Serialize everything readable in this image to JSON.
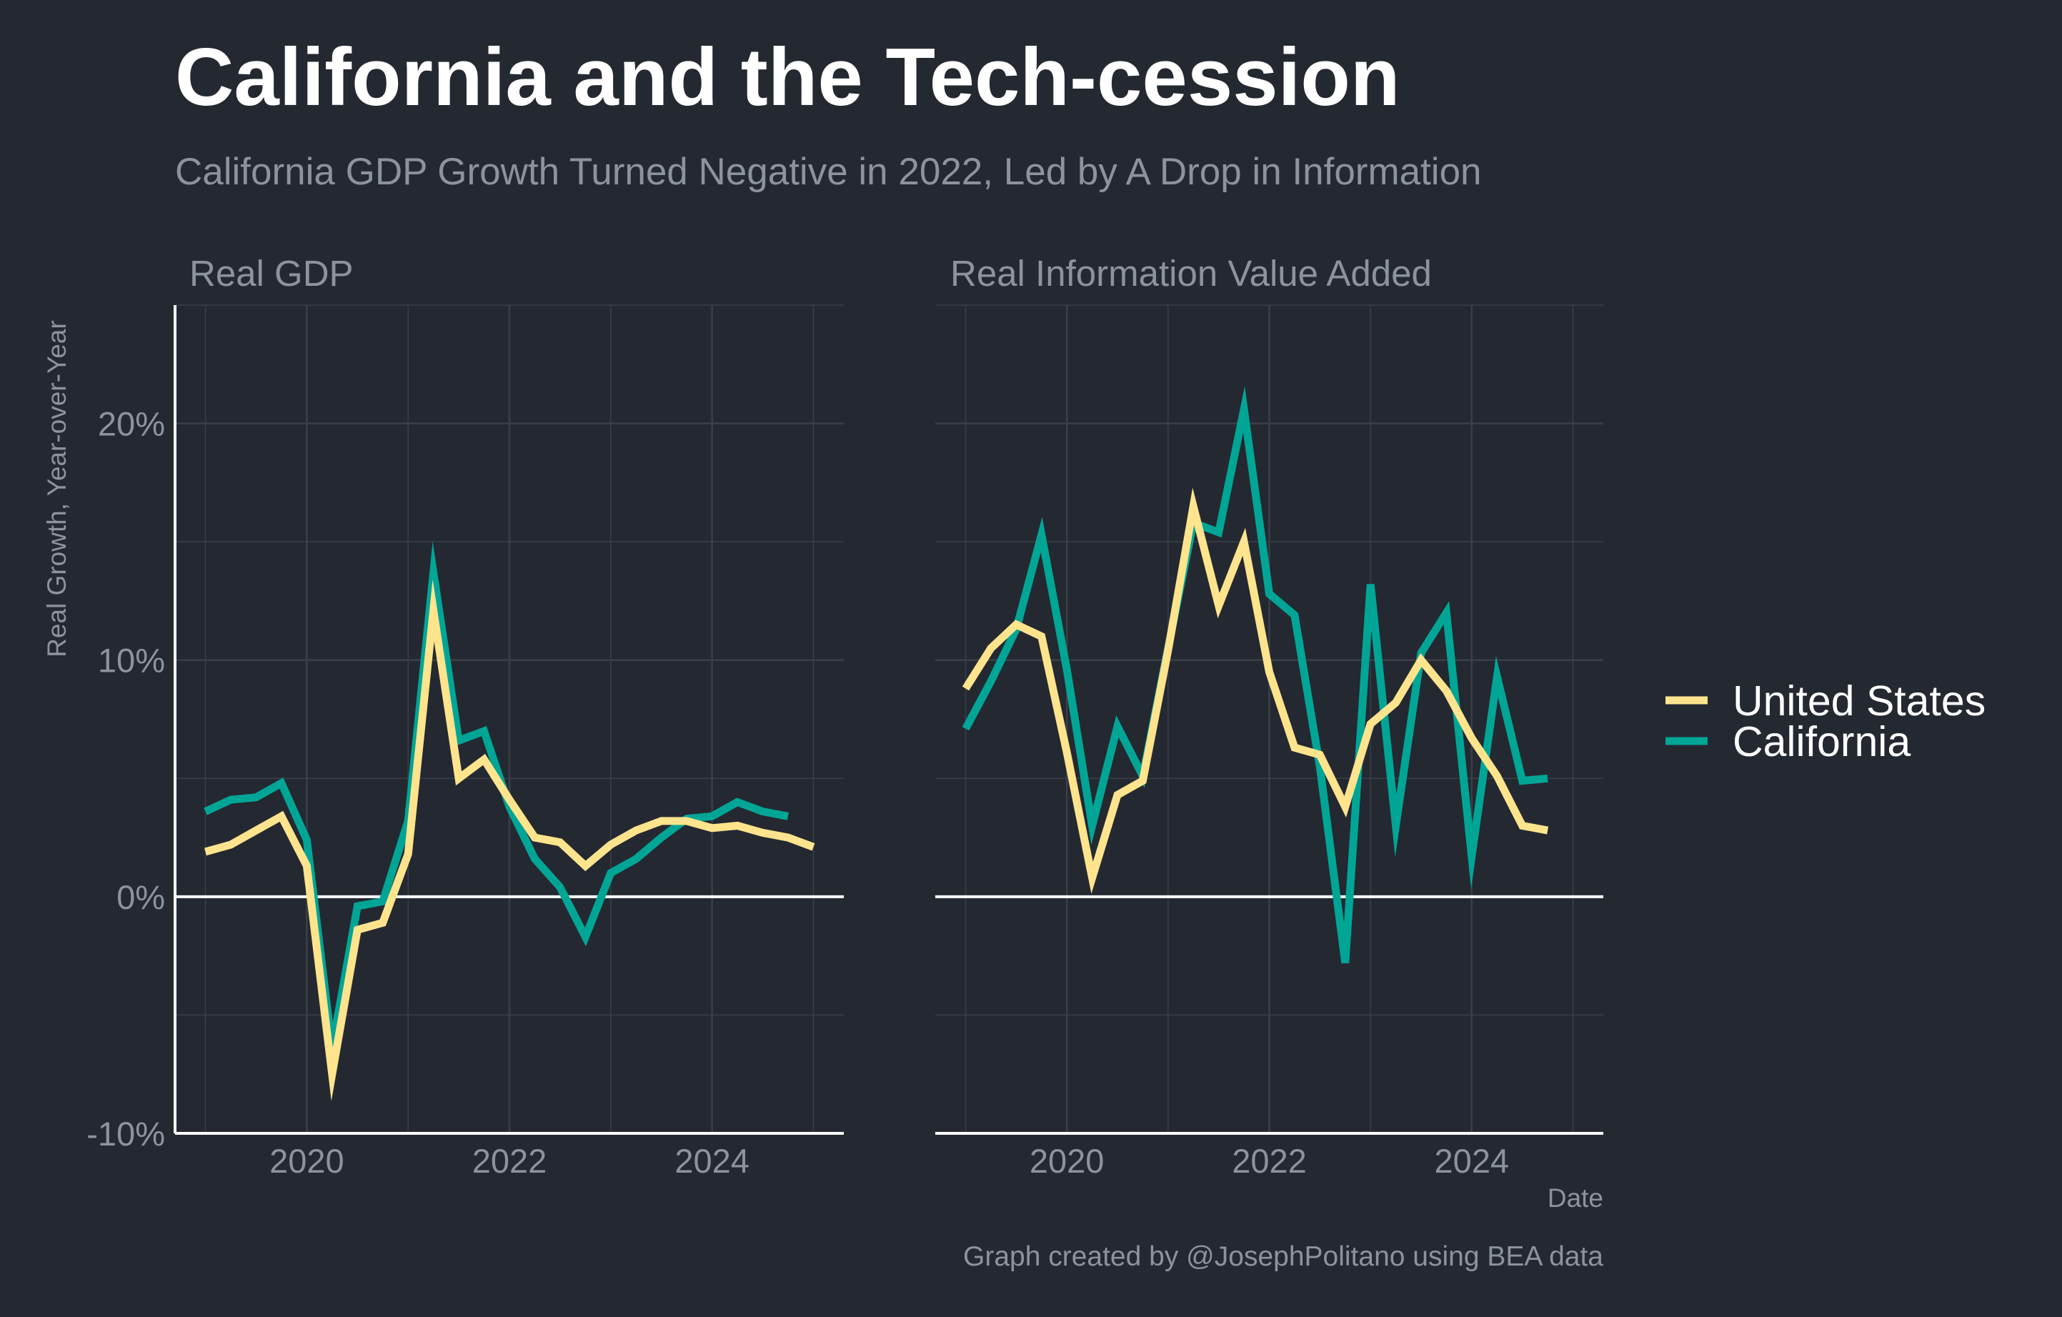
{
  "title": "California and the Tech-cession",
  "subtitle": "California GDP Growth Turned Negative in 2022, Led by A Drop in Information",
  "caption": "Graph created by @JosephPolitano using BEA data",
  "colors": {
    "background": "#242831",
    "grid": "#3a3f48",
    "axis": "#ffffff",
    "muted_text": "#8d939d",
    "United States": "#ffe48d",
    "California": "#00a596"
  },
  "chart_data": {
    "type": "line",
    "ylabel": "Real Growth, Year-over-Year",
    "xlabel": "Date",
    "ylim": [
      -10,
      25
    ],
    "xlim": [
      2018.7,
      2025.3
    ],
    "y_ticks": [
      {
        "value": -10,
        "label": "-10%"
      },
      {
        "value": 0,
        "label": "0%"
      },
      {
        "value": 10,
        "label": "10%"
      },
      {
        "value": 20,
        "label": "20%"
      }
    ],
    "x_ticks": [
      {
        "value": 2020,
        "label": "2020"
      },
      {
        "value": 2022,
        "label": "2022"
      },
      {
        "value": 2024,
        "label": "2024"
      }
    ],
    "legend": {
      "position": "right",
      "entries": [
        "United States",
        "California"
      ]
    },
    "grid": true,
    "panels": [
      {
        "title": "Real GDP",
        "series": [
          {
            "name": "California",
            "points": [
              [
                2019.0,
                3.6
              ],
              [
                2019.25,
                4.1
              ],
              [
                2019.5,
                4.2
              ],
              [
                2019.75,
                4.8
              ],
              [
                2020.0,
                2.4
              ],
              [
                2020.25,
                -6.4
              ],
              [
                2020.5,
                -0.4
              ],
              [
                2020.75,
                -0.2
              ],
              [
                2021.0,
                3.2
              ],
              [
                2021.25,
                13.7
              ],
              [
                2021.5,
                6.6
              ],
              [
                2021.75,
                7.0
              ],
              [
                2022.0,
                3.8
              ],
              [
                2022.25,
                1.6
              ],
              [
                2022.5,
                0.4
              ],
              [
                2022.75,
                -1.7
              ],
              [
                2023.0,
                1.0
              ],
              [
                2023.25,
                1.6
              ],
              [
                2023.5,
                2.5
              ],
              [
                2023.75,
                3.3
              ],
              [
                2024.0,
                3.4
              ],
              [
                2024.25,
                4.0
              ],
              [
                2024.5,
                3.6
              ],
              [
                2024.75,
                3.4
              ]
            ]
          },
          {
            "name": "United States",
            "points": [
              [
                2019.0,
                1.9
              ],
              [
                2019.25,
                2.2
              ],
              [
                2019.5,
                2.8
              ],
              [
                2019.75,
                3.4
              ],
              [
                2020.0,
                1.3
              ],
              [
                2020.25,
                -7.5
              ],
              [
                2020.5,
                -1.4
              ],
              [
                2020.75,
                -1.1
              ],
              [
                2021.0,
                1.8
              ],
              [
                2021.25,
                12.1
              ],
              [
                2021.5,
                5.0
              ],
              [
                2021.75,
                5.8
              ],
              [
                2022.0,
                4.1
              ],
              [
                2022.25,
                2.5
              ],
              [
                2022.5,
                2.3
              ],
              [
                2022.75,
                1.3
              ],
              [
                2023.0,
                2.2
              ],
              [
                2023.25,
                2.8
              ],
              [
                2023.5,
                3.2
              ],
              [
                2023.75,
                3.2
              ],
              [
                2024.0,
                2.9
              ],
              [
                2024.25,
                3.0
              ],
              [
                2024.5,
                2.7
              ],
              [
                2024.75,
                2.5
              ],
              [
                2025.0,
                2.1
              ]
            ]
          }
        ]
      },
      {
        "title": "Real Information Value Added",
        "series": [
          {
            "name": "California",
            "points": [
              [
                2019.0,
                7.1
              ],
              [
                2019.25,
                9.1
              ],
              [
                2019.5,
                11.3
              ],
              [
                2019.75,
                15.3
              ],
              [
                2020.0,
                9.6
              ],
              [
                2020.25,
                3.0
              ],
              [
                2020.5,
                7.2
              ],
              [
                2020.75,
                5.1
              ],
              [
                2021.0,
                10.5
              ],
              [
                2021.25,
                15.8
              ],
              [
                2021.5,
                15.4
              ],
              [
                2021.75,
                20.6
              ],
              [
                2022.0,
                12.8
              ],
              [
                2022.25,
                11.9
              ],
              [
                2022.5,
                5.5
              ],
              [
                2022.75,
                -2.8
              ],
              [
                2023.0,
                13.2
              ],
              [
                2023.25,
                3.0
              ],
              [
                2023.5,
                10.3
              ],
              [
                2023.75,
                12.0
              ],
              [
                2024.0,
                1.7
              ],
              [
                2024.25,
                9.3
              ],
              [
                2024.5,
                4.9
              ],
              [
                2024.75,
                5.0
              ]
            ]
          },
          {
            "name": "United States",
            "points": [
              [
                2019.0,
                8.8
              ],
              [
                2019.25,
                10.5
              ],
              [
                2019.5,
                11.5
              ],
              [
                2019.75,
                11.0
              ],
              [
                2020.0,
                6.1
              ],
              [
                2020.25,
                0.8
              ],
              [
                2020.5,
                4.3
              ],
              [
                2020.75,
                4.9
              ],
              [
                2021.0,
                10.4
              ],
              [
                2021.25,
                16.5
              ],
              [
                2021.5,
                12.3
              ],
              [
                2021.75,
                15.0
              ],
              [
                2022.0,
                9.5
              ],
              [
                2022.25,
                6.3
              ],
              [
                2022.5,
                6.0
              ],
              [
                2022.75,
                3.8
              ],
              [
                2023.0,
                7.3
              ],
              [
                2023.25,
                8.2
              ],
              [
                2023.5,
                10.0
              ],
              [
                2023.75,
                8.7
              ],
              [
                2024.0,
                6.7
              ],
              [
                2024.25,
                5.1
              ],
              [
                2024.5,
                3.0
              ],
              [
                2024.75,
                2.8
              ]
            ]
          }
        ]
      }
    ]
  }
}
